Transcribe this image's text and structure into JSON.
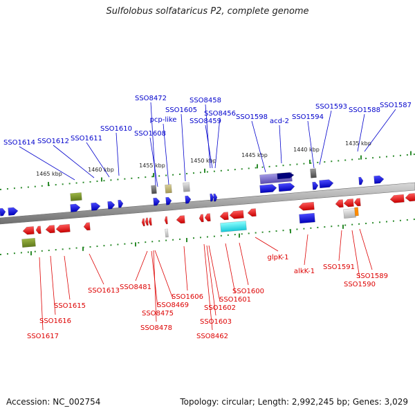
{
  "title": "Sulfolobus solfataricus P2, complete genome",
  "footer": {
    "accession": "Accession: NC_002754",
    "topology": "Topology: circular; Length: 2,992,245 bp; Genes: 3,029"
  },
  "colors": {
    "plus_label": "#0000cc",
    "minus_label": "#dd0000",
    "backbone": "#888888",
    "tick": "#2a8a2a"
  },
  "ticks": [
    "1465 kbp",
    "1460 kbp",
    "1455 kbp",
    "1450 kbp",
    "1445 kbp",
    "1440 kbp",
    "1435 kbp"
  ],
  "plus_labels": [
    "SSO1614",
    "SSO1612",
    "SSO1611",
    "SSO1610",
    "SSO1608",
    "pcp-like",
    "SSO8472",
    "SSO1605",
    "SSO8458",
    "SSO8459",
    "SSO8456",
    "SSO1598",
    "acd-2",
    "SSO1594",
    "SSO1593",
    "SSO1588",
    "SSO1587"
  ],
  "minus_labels": [
    "SSO1617",
    "SSO1616",
    "SSO1615",
    "SSO1613",
    "SSO8481",
    "SSO8475",
    "SSO8478",
    "SSO8469",
    "SSO1606",
    "SSO1603",
    "SSO8462",
    "SSO1602",
    "SSO1601",
    "SSO1600",
    "glpK-1",
    "alkK-1",
    "SSO1591",
    "SSO1590",
    "SSO1589"
  ]
}
